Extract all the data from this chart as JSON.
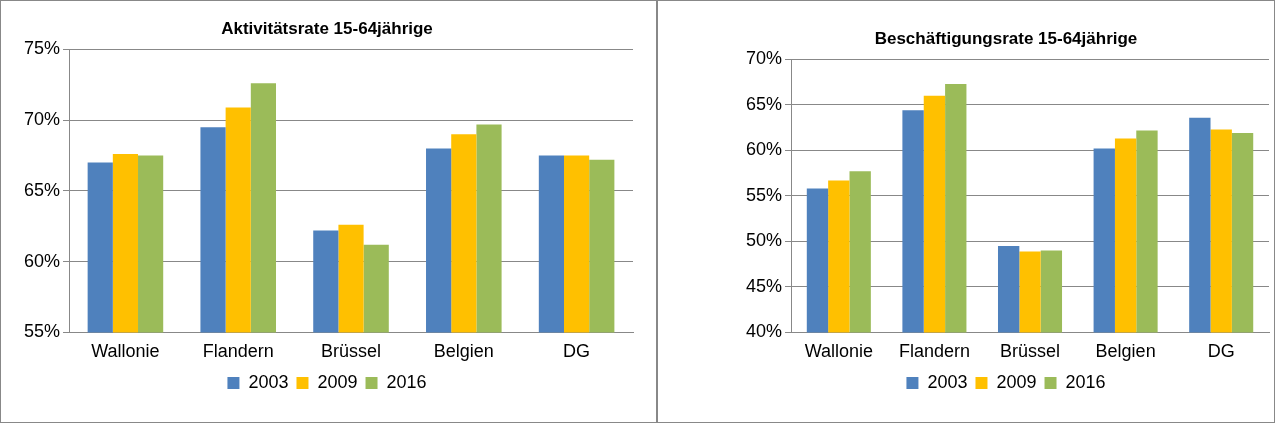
{
  "chart_data": [
    {
      "type": "bar",
      "title": "Aktivitätsrate 15-64jährige",
      "categories": [
        "Wallonie",
        "Flandern",
        "Brüssel",
        "Belgien",
        "DG"
      ],
      "series": [
        {
          "name": "2003",
          "color": "#4f81bd",
          "values": [
            67.0,
            69.5,
            62.2,
            68.0,
            67.5
          ]
        },
        {
          "name": "2009",
          "color": "#ffc000",
          "values": [
            67.6,
            70.9,
            62.6,
            69.0,
            67.5
          ]
        },
        {
          "name": "2016",
          "color": "#9bbb59",
          "values": [
            67.5,
            72.6,
            61.2,
            69.7,
            67.2
          ]
        }
      ],
      "ylim": [
        55,
        75
      ],
      "yticks": [
        {
          "value": 55,
          "label": "55%"
        },
        {
          "value": 60,
          "label": "60%"
        },
        {
          "value": 65,
          "label": "65%"
        },
        {
          "value": 70,
          "label": "70%"
        },
        {
          "value": 75,
          "label": "75%"
        }
      ],
      "grid": "y",
      "legend": "bottom"
    },
    {
      "type": "bar",
      "title": "Beschäftigungsrate 15-64jährige",
      "categories": [
        "Wallonie",
        "Flandern",
        "Brüssel",
        "Belgien",
        "DG"
      ],
      "series": [
        {
          "name": "2003",
          "color": "#4f81bd",
          "values": [
            55.8,
            64.4,
            49.5,
            60.2,
            63.6
          ]
        },
        {
          "name": "2009",
          "color": "#ffc000",
          "values": [
            56.7,
            66.0,
            48.9,
            61.3,
            62.3
          ]
        },
        {
          "name": "2016",
          "color": "#9bbb59",
          "values": [
            57.7,
            67.3,
            49.0,
            62.2,
            61.9
          ]
        }
      ],
      "ylim": [
        40,
        70
      ],
      "yticks": [
        {
          "value": 40,
          "label": "40%"
        },
        {
          "value": 45,
          "label": "45%"
        },
        {
          "value": 50,
          "label": "50%"
        },
        {
          "value": 55,
          "label": "55%"
        },
        {
          "value": 60,
          "label": "60%"
        },
        {
          "value": 65,
          "label": "65%"
        },
        {
          "value": 70,
          "label": "70%"
        }
      ],
      "grid": "y",
      "legend": "bottom"
    }
  ]
}
